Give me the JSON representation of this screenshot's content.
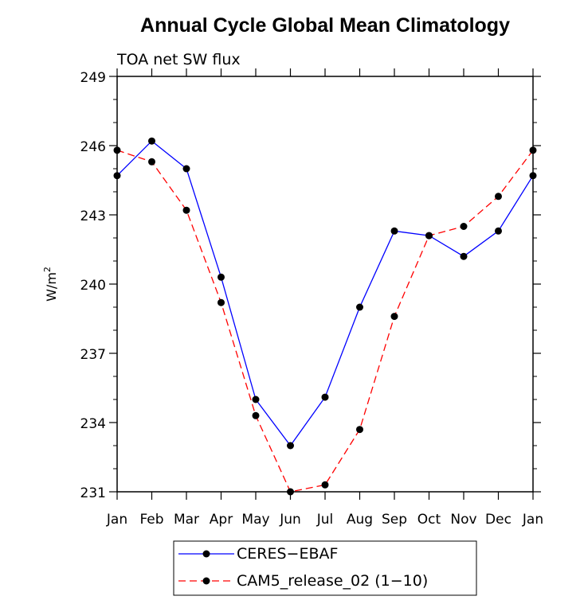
{
  "chart_data": {
    "type": "line",
    "title": "Annual Cycle Global Mean Climatology",
    "subtitle": "TOA net SW flux",
    "ylabel": "W/m",
    "ylabel_sup": "2",
    "xlabel": "",
    "categories": [
      "Jan",
      "Feb",
      "Mar",
      "Apr",
      "May",
      "Jun",
      "Jul",
      "Aug",
      "Sep",
      "Oct",
      "Nov",
      "Dec",
      "Jan"
    ],
    "ylim": [
      231,
      249
    ],
    "yticks": [
      "231",
      "234",
      "237",
      "240",
      "243",
      "246",
      "249"
    ],
    "grid": false,
    "legend_position": "bottom",
    "series": [
      {
        "name": "CERES−EBAF",
        "color": "#0000ff",
        "dash": "solid",
        "values": [
          244.7,
          246.2,
          245.0,
          240.3,
          235.0,
          233.0,
          235.1,
          239.0,
          242.3,
          242.1,
          241.2,
          242.3,
          244.7
        ]
      },
      {
        "name": "CAM5_release_02 (1−10)",
        "color": "#ff0000",
        "dash": "dashed",
        "values": [
          245.8,
          245.3,
          243.2,
          239.2,
          234.3,
          231.0,
          231.3,
          233.7,
          238.6,
          242.1,
          242.5,
          243.8,
          245.8
        ]
      }
    ]
  }
}
